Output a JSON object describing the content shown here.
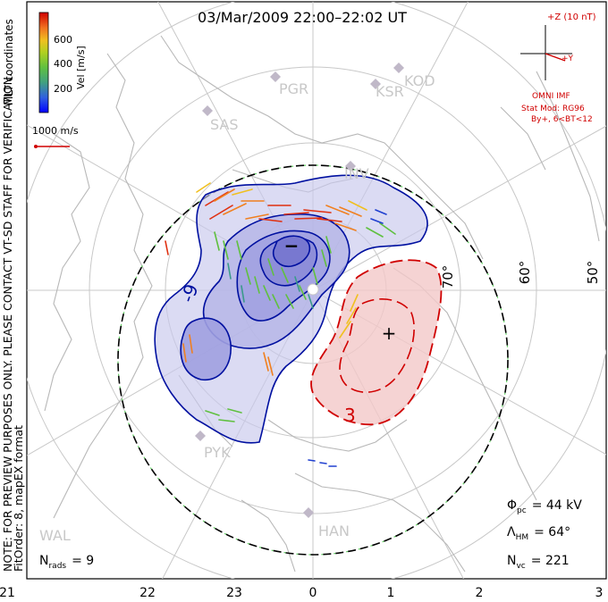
{
  "title": "03/Mar/2009 22:00–22:02 UT",
  "side_note_1": "NOTE: FOR PREVIEW PURPOSES ONLY. PLEASE CONTACT VT-SD STAFF FOR VERIFICATION.",
  "side_note_2": "FitOrder: 8, mapEX format",
  "coord_label": "MLT coordinates",
  "colorbar": {
    "axis_label": "Vel [m/s]",
    "ticks": [
      "600",
      "400",
      "200"
    ],
    "colors": [
      "#0000ff",
      "#4a6fd0",
      "#3a9a8a",
      "#55c03a",
      "#a8d42a",
      "#f0c020",
      "#f08020",
      "#e02010",
      "#c00000"
    ]
  },
  "vector_scale": "1000 m/s",
  "imf": {
    "z_label": "+Z (10 nT)",
    "y_label": "+Y",
    "source": "OMNI IMF",
    "model_line1": "Stat Mod: RG96",
    "model_line2": "By+, 6<BT<12"
  },
  "stats": {
    "phi_pc": "Φ",
    "phi_sub": "pc",
    "phi_val": "= 44 kV",
    "lambda": "Λ",
    "lambda_sub": "HM",
    "lambda_val": "= 64°",
    "nvc": "N",
    "nvc_sub": "vc",
    "nvc_val": "= 221",
    "nrads": "N",
    "nrads_sub": "rads",
    "nrads_val": "= 9"
  },
  "lat_labels": [
    "70°",
    "60°",
    "50°"
  ],
  "radars": [
    "PGR",
    "KSR",
    "KOD",
    "SAS",
    "INV",
    "PYK",
    "HAN",
    "WAL"
  ],
  "contour_labels": [
    "-9",
    "3"
  ],
  "extrema": [
    "−",
    "+"
  ],
  "chart_data": {
    "type": "heatmap",
    "title": "03/Mar/2009 22:00–22:02 UT",
    "xlabel": "",
    "ylabel": "",
    "x_ticks": [
      "21",
      "22",
      "23",
      "0",
      "1",
      "2",
      "3"
    ],
    "lat_circles": [
      80,
      70,
      60,
      50
    ],
    "potential_kV": {
      "cross_polar_cap": 44,
      "min_label": -9,
      "max_label": 3
    },
    "heppner_maynard_boundary_deg": 64,
    "num_vectors": 221,
    "num_radars": 9,
    "velocity_colorbar_range": [
      0,
      800
    ],
    "velocity_colorbar_ticks": [
      200,
      400,
      600
    ]
  }
}
